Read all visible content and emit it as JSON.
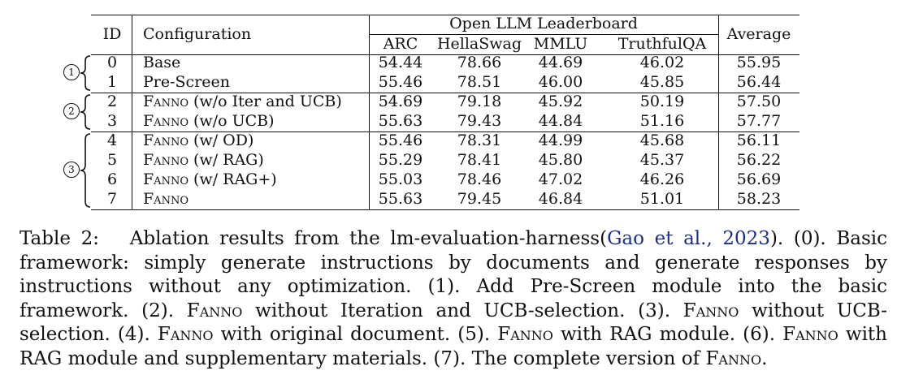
{
  "table": {
    "headers": {
      "id": "ID",
      "configuration": "Configuration",
      "group": "Open LLM Leaderboard",
      "arc": "ARC",
      "hellaswag": "HellaSwag",
      "mmlu": "MMLU",
      "truthfulqa": "TruthfulQA",
      "average": "Average"
    },
    "group_markers": [
      "1",
      "2",
      "3"
    ],
    "rows": [
      {
        "id": "0",
        "config_sc": "",
        "config": "Base",
        "arc": "54.44",
        "hellaswag": "78.66",
        "mmlu": "44.69",
        "truthfulqa": "46.02",
        "average": "55.95"
      },
      {
        "id": "1",
        "config_sc": "",
        "config": "Pre-Screen",
        "arc": "55.46",
        "hellaswag": "78.51",
        "mmlu": "46.00",
        "truthfulqa": "45.85",
        "average": "56.44"
      },
      {
        "id": "2",
        "config_sc": "Fanno",
        "config": " (w/o Iter and UCB)",
        "arc": "54.69",
        "hellaswag": "79.18",
        "mmlu": "45.92",
        "truthfulqa": "50.19",
        "average": "57.50"
      },
      {
        "id": "3",
        "config_sc": "Fanno",
        "config": " (w/o UCB)",
        "arc": "55.63",
        "hellaswag": "79.43",
        "mmlu": "44.84",
        "truthfulqa": "51.16",
        "average": "57.77"
      },
      {
        "id": "4",
        "config_sc": "Fanno",
        "config": " (w/ OD)",
        "arc": "55.46",
        "hellaswag": "78.31",
        "mmlu": "44.99",
        "truthfulqa": "45.68",
        "average": "56.11"
      },
      {
        "id": "5",
        "config_sc": "Fanno",
        "config": " (w/ RAG)",
        "arc": "55.29",
        "hellaswag": "78.41",
        "mmlu": "45.80",
        "truthfulqa": "45.37",
        "average": "56.22"
      },
      {
        "id": "6",
        "config_sc": "Fanno",
        "config": " (w/ RAG+)",
        "arc": "55.03",
        "hellaswag": "78.46",
        "mmlu": "47.02",
        "truthfulqa": "46.26",
        "average": "56.69"
      },
      {
        "id": "7",
        "config_sc": "Fanno",
        "config": "",
        "arc": "55.63",
        "hellaswag": "79.45",
        "mmlu": "46.84",
        "truthfulqa": "51.01",
        "average": "58.23"
      }
    ]
  },
  "caption": {
    "label": "Table 2:",
    "t1": "Ablation results from the lm-evaluation-harness(",
    "cite_author": "Gao et al.",
    "cite_sep": ", ",
    "cite_year": "2023",
    "t2": "). (0). Basic framework: simply generate instructions by documents and generate responses by instructions without any optimization. (1). Add Pre-Screen module into the basic framework. (2). ",
    "sc1": "Fanno",
    "t3": " without Iteration and UCB-selection. (3). ",
    "sc2": "Fanno",
    "t4": " without UCB-selection. (4). ",
    "sc3": "Fanno",
    "t5": " with original document. (5). ",
    "sc4": "Fanno",
    "t6": " with RAG module. (6). ",
    "sc5": "Fanno",
    "t7": " with RAG module and supplementary materials. (7). The complete version of ",
    "sc6": "Fanno",
    "t8": "."
  }
}
